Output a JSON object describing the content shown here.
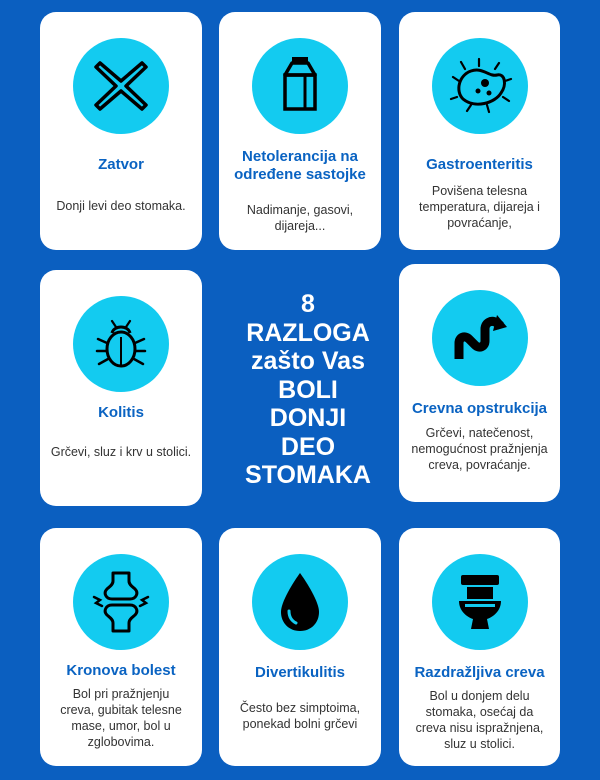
{
  "headline": {
    "line1": "8",
    "line2": "RAZLOGA",
    "line3": "zašto Vas",
    "line4": "BOLI",
    "line5": "DONJI",
    "line6": "DEO",
    "line7": "STOMAKA"
  },
  "cards": [
    {
      "icon": "x-icon",
      "title": "Zatvor",
      "description": "Donji levi deo stomaka."
    },
    {
      "icon": "milk-carton-icon",
      "title": "Netolerancija na određene sastojke",
      "description": "Nadimanje, gasovi, dijareja..."
    },
    {
      "icon": "bacteria-icon",
      "title": "Gastroenteritis",
      "description": "Povišena telesna temperatura, dijareja i povraćanje,"
    },
    {
      "icon": "bug-icon",
      "title": "Kolitis",
      "description": "Grčevi, sluz i krv u stolici."
    },
    {
      "icon": "intestine-icon",
      "title": "Crevna opstrukcija",
      "description": "Grčevi, natečenost, nemogućnost pražnjenja creva, povraćanje."
    },
    {
      "icon": "joint-pain-icon",
      "title": "Kronova bolest",
      "description": "Bol pri pražnjenju creva, gubitak telesne mase, umor, bol u zglobovima."
    },
    {
      "icon": "drop-icon",
      "title": "Divertikulitis",
      "description": "Često bez simptoima, ponekad bolni grčevi"
    },
    {
      "icon": "toilet-icon",
      "title": "Razdražljiva creva",
      "description": "Bol u donjem delu stomaka, osećaj da creva nisu ispražnjena, sluz u stolici."
    }
  ],
  "colors": {
    "background": "#0b5fc0",
    "icon_circle": "#13cbf0",
    "title": "#0a63c2",
    "card": "#ffffff"
  }
}
